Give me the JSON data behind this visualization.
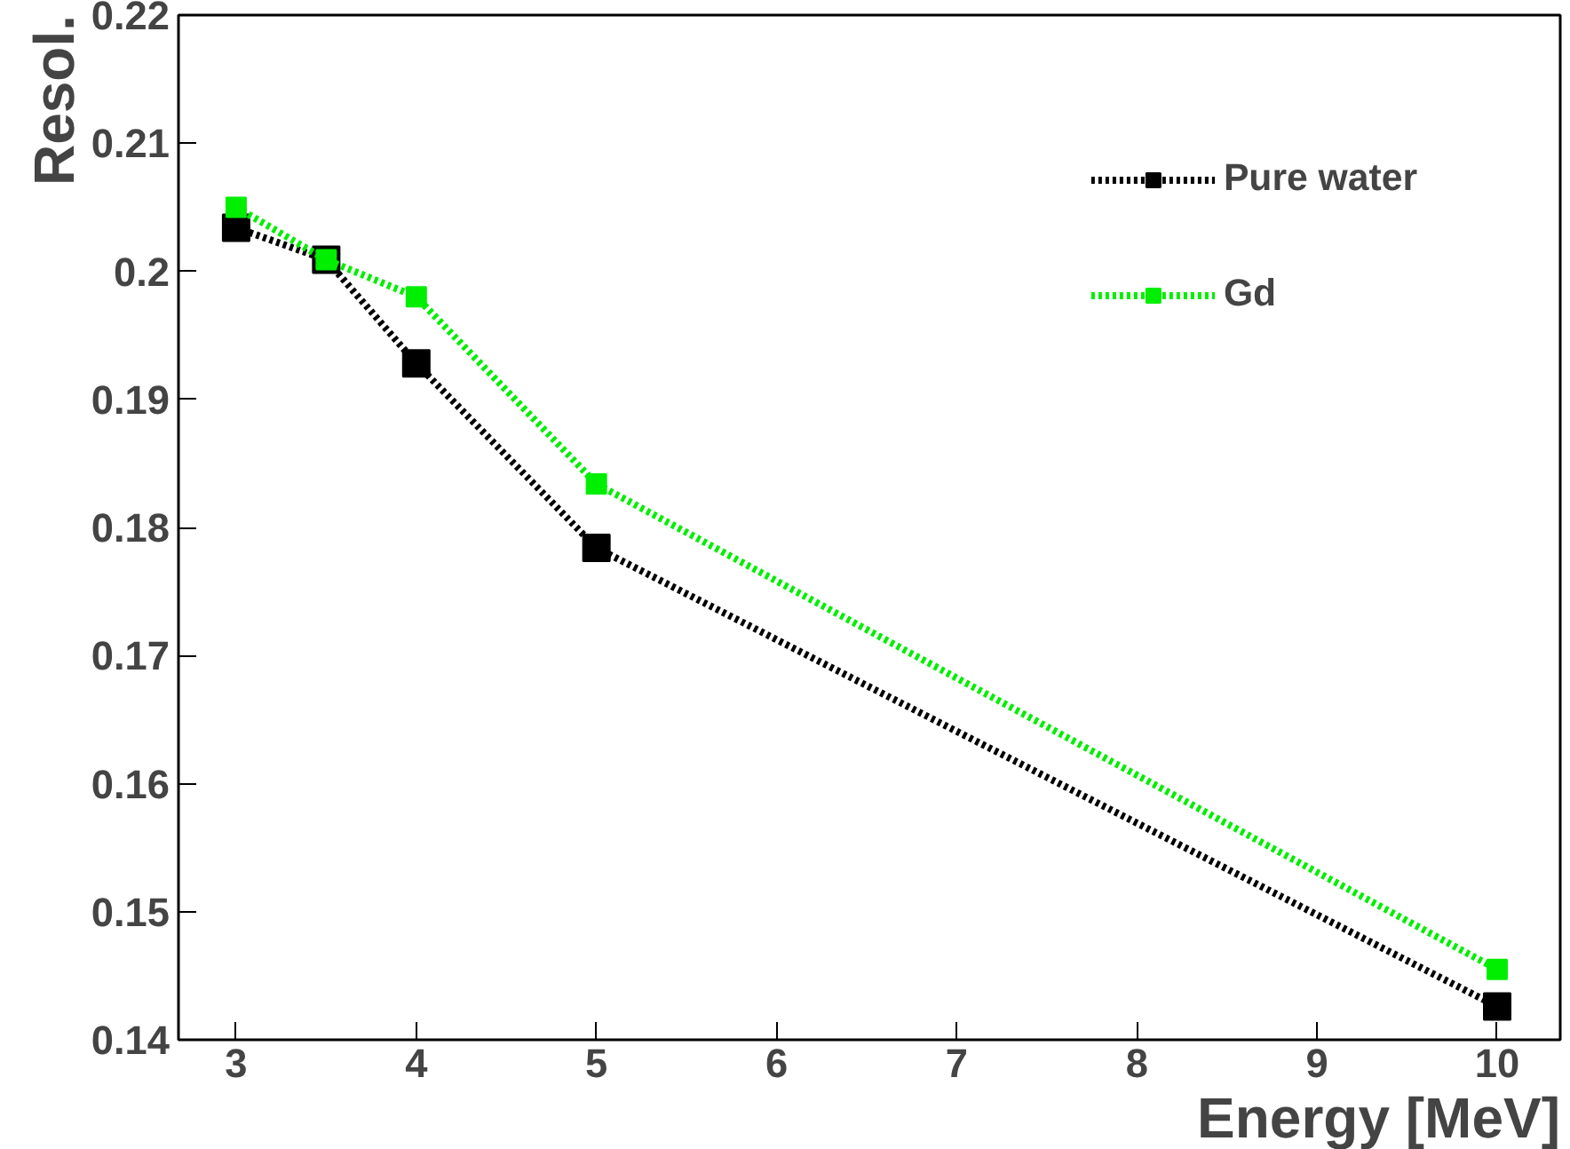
{
  "chart_data": {
    "type": "line",
    "xlabel": "Energy [MeV]",
    "ylabel": "Resol.",
    "x": [
      3,
      3.5,
      4,
      5,
      10
    ],
    "series": [
      {
        "name": "Pure water",
        "color": "#000000",
        "values": [
          0.2034,
          0.2009,
          0.1928,
          0.1784,
          0.1426
        ]
      },
      {
        "name": "Gd",
        "color": "#00ee00",
        "values": [
          0.205,
          0.2009,
          0.198,
          0.1834,
          0.1455
        ]
      }
    ],
    "xlim": [
      2.68,
      10.35
    ],
    "ylim": [
      0.14,
      0.22
    ],
    "xticks": [
      3,
      4,
      5,
      6,
      7,
      8,
      9,
      10
    ],
    "yticks": [
      0.14,
      0.15,
      0.16,
      0.17,
      0.18,
      0.19,
      0.2,
      0.21,
      0.22
    ],
    "marker": "square",
    "line_style": "dotted",
    "grid": false,
    "legend": "top right"
  }
}
